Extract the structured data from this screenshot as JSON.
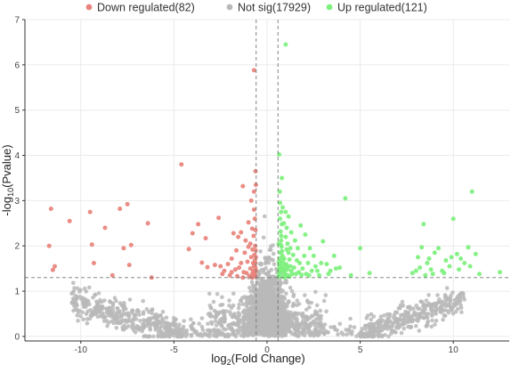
{
  "chart_data": {
    "type": "scatter",
    "title": "",
    "xlabel_main": "log",
    "xlabel_sub": "2",
    "xlabel_rest": "(Fold Change)",
    "ylabel_main": "-log",
    "ylabel_sub": "10",
    "ylabel_rest": "(Pvalue)",
    "xlim": [
      -13,
      13
    ],
    "ylim": [
      -0.1,
      7
    ],
    "x_ticks": [
      -10,
      -5,
      0,
      5,
      10
    ],
    "y_ticks": [
      0,
      1,
      2,
      3,
      4,
      5,
      6,
      7
    ],
    "grid": true,
    "legend_position": "top",
    "thresholds": {
      "x": [
        -0.585,
        0.585
      ],
      "y": 1.3
    },
    "colors": {
      "down": "#e8837b",
      "notsig": "#b8b8b8",
      "up": "#7df07d",
      "grid": "#ebebeb",
      "threshold": "#777777",
      "axis": "#333333"
    },
    "series": [
      {
        "name": "Down regulated(82)",
        "key": "down",
        "points": [
          [
            -11.6,
            2.82
          ],
          [
            -11.7,
            2.0
          ],
          [
            -11.4,
            1.55
          ],
          [
            -11.5,
            1.47
          ],
          [
            -10.6,
            2.55
          ],
          [
            -9.5,
            2.75
          ],
          [
            -9.4,
            2.03
          ],
          [
            -9.3,
            1.62
          ],
          [
            -8.7,
            2.4
          ],
          [
            -7.9,
            2.82
          ],
          [
            -7.5,
            2.92
          ],
          [
            -7.3,
            2.02
          ],
          [
            -7.7,
            1.95
          ],
          [
            -8.3,
            1.35
          ],
          [
            -7.4,
            1.58
          ],
          [
            -6.4,
            2.5
          ],
          [
            -6.2,
            1.3
          ],
          [
            -4.6,
            3.8
          ],
          [
            -4.2,
            1.93
          ],
          [
            -4.0,
            2.28
          ],
          [
            -3.7,
            2.48
          ],
          [
            -3.5,
            1.63
          ],
          [
            -3.3,
            2.17
          ],
          [
            -3.2,
            1.53
          ],
          [
            -2.6,
            2.62
          ],
          [
            -2.5,
            1.55
          ],
          [
            -2.4,
            1.38
          ],
          [
            -2.3,
            1.45
          ],
          [
            -2.1,
            1.6
          ],
          [
            -2.0,
            1.35
          ],
          [
            -1.9,
            1.42
          ],
          [
            -1.9,
            1.72
          ],
          [
            -1.8,
            2.28
          ],
          [
            -1.7,
            1.48
          ],
          [
            -1.65,
            1.9
          ],
          [
            -1.6,
            1.33
          ],
          [
            -1.55,
            2.2
          ],
          [
            -1.5,
            1.52
          ],
          [
            -1.4,
            1.62
          ],
          [
            -1.4,
            2.3
          ],
          [
            -1.3,
            3.32
          ],
          [
            -1.25,
            1.42
          ],
          [
            -1.2,
            1.85
          ],
          [
            -1.15,
            2.12
          ],
          [
            -1.1,
            1.4
          ],
          [
            -1.05,
            1.65
          ],
          [
            -1.0,
            1.98
          ],
          [
            -1.0,
            2.52
          ],
          [
            -0.95,
            1.33
          ],
          [
            -0.9,
            1.5
          ],
          [
            -0.9,
            2.05
          ],
          [
            -0.85,
            1.75
          ],
          [
            -0.85,
            3.0
          ],
          [
            -0.8,
            1.38
          ],
          [
            -0.8,
            2.38
          ],
          [
            -0.78,
            1.92
          ],
          [
            -0.75,
            1.45
          ],
          [
            -0.75,
            1.62
          ],
          [
            -0.72,
            2.22
          ],
          [
            -0.7,
            1.35
          ],
          [
            -0.7,
            1.55
          ],
          [
            -0.68,
            1.8
          ],
          [
            -0.66,
            2.6
          ],
          [
            -0.66,
            1.42
          ],
          [
            -0.65,
            1.68
          ],
          [
            -0.64,
            2.0
          ],
          [
            -0.63,
            1.32
          ],
          [
            -0.62,
            1.52
          ],
          [
            -0.62,
            2.35
          ],
          [
            -0.61,
            1.9
          ],
          [
            -0.6,
            1.45
          ],
          [
            -0.6,
            3.35
          ],
          [
            -0.6,
            1.75
          ],
          [
            -0.7,
            5.88
          ],
          [
            -0.62,
            3.65
          ],
          [
            -0.8,
            1.3
          ],
          [
            -1.3,
            1.3
          ],
          [
            -2.8,
            1.58
          ],
          [
            -0.7,
            2.8
          ],
          [
            -0.7,
            3.2
          ],
          [
            -0.63,
            1.62
          ],
          [
            -0.66,
            1.36
          ]
        ]
      },
      {
        "name": "Not sig(17929)",
        "key": "notsig"
      },
      {
        "name": "Up regulated(121)",
        "key": "up",
        "points": [
          [
            1.0,
            6.45
          ],
          [
            0.65,
            4.02
          ],
          [
            0.68,
            3.2
          ],
          [
            0.7,
            2.95
          ],
          [
            0.7,
            2.6
          ],
          [
            0.72,
            2.32
          ],
          [
            0.75,
            2.12
          ],
          [
            0.78,
            1.98
          ],
          [
            0.8,
            1.88
          ],
          [
            0.82,
            1.78
          ],
          [
            0.85,
            1.68
          ],
          [
            0.88,
            1.6
          ],
          [
            0.9,
            1.52
          ],
          [
            0.92,
            1.45
          ],
          [
            0.95,
            1.4
          ],
          [
            0.98,
            1.35
          ],
          [
            1.0,
            2.75
          ],
          [
            1.05,
            2.4
          ],
          [
            1.1,
            2.05
          ],
          [
            1.15,
            1.85
          ],
          [
            1.2,
            1.7
          ],
          [
            1.25,
            1.55
          ],
          [
            1.3,
            1.45
          ],
          [
            1.35,
            1.38
          ],
          [
            0.62,
            1.32
          ],
          [
            0.64,
            1.42
          ],
          [
            0.66,
            1.58
          ],
          [
            0.68,
            1.72
          ],
          [
            0.7,
            1.85
          ],
          [
            0.74,
            2.02
          ],
          [
            0.76,
            2.22
          ],
          [
            0.8,
            2.48
          ],
          [
            0.84,
            2.85
          ],
          [
            0.62,
            2.05
          ],
          [
            0.63,
            1.65
          ],
          [
            0.64,
            1.5
          ],
          [
            0.66,
            1.36
          ],
          [
            0.7,
            1.42
          ],
          [
            0.72,
            1.62
          ],
          [
            0.78,
            1.52
          ],
          [
            0.86,
            1.45
          ],
          [
            0.92,
            1.72
          ],
          [
            1.02,
            1.6
          ],
          [
            1.08,
            1.48
          ],
          [
            1.12,
            1.35
          ],
          [
            1.4,
            1.8
          ],
          [
            1.5,
            2.12
          ],
          [
            1.6,
            1.68
          ],
          [
            1.7,
            1.42
          ],
          [
            1.8,
            2.45
          ],
          [
            1.9,
            1.5
          ],
          [
            2.0,
            1.78
          ],
          [
            2.1,
            1.38
          ],
          [
            2.2,
            1.62
          ],
          [
            2.3,
            1.95
          ],
          [
            2.4,
            1.45
          ],
          [
            2.6,
            1.55
          ],
          [
            2.8,
            1.35
          ],
          [
            3.0,
            2.1
          ],
          [
            3.2,
            1.6
          ],
          [
            3.4,
            1.45
          ],
          [
            3.6,
            1.78
          ],
          [
            3.9,
            1.52
          ],
          [
            4.2,
            3.05
          ],
          [
            4.5,
            1.35
          ],
          [
            5.0,
            1.95
          ],
          [
            5.5,
            1.4
          ],
          [
            1.15,
            2.65
          ],
          [
            1.0,
            2.2
          ],
          [
            0.9,
            2.5
          ],
          [
            1.3,
            2.3
          ],
          [
            1.25,
            1.95
          ],
          [
            0.95,
            1.3
          ],
          [
            1.05,
            1.92
          ],
          [
            1.2,
            1.32
          ],
          [
            1.45,
            1.52
          ],
          [
            1.55,
            1.38
          ],
          [
            1.65,
            1.95
          ],
          [
            1.75,
            1.62
          ],
          [
            1.85,
            1.36
          ],
          [
            2.05,
            2.25
          ],
          [
            2.25,
            1.35
          ],
          [
            2.5,
            1.78
          ],
          [
            2.7,
            1.45
          ],
          [
            2.9,
            1.62
          ],
          [
            3.3,
            1.38
          ],
          [
            3.7,
            1.5
          ],
          [
            0.75,
            2.75
          ],
          [
            0.8,
            3.5
          ],
          [
            8.4,
            2.48
          ],
          [
            8.3,
            1.97
          ],
          [
            8.1,
            1.75
          ],
          [
            8.0,
            1.45
          ],
          [
            8.2,
            1.52
          ],
          [
            8.5,
            1.35
          ],
          [
            8.6,
            1.62
          ],
          [
            8.8,
            1.48
          ],
          [
            9.0,
            1.85
          ],
          [
            9.2,
            1.95
          ],
          [
            9.4,
            1.45
          ],
          [
            9.6,
            1.68
          ],
          [
            9.8,
            1.55
          ],
          [
            10.0,
            2.6
          ],
          [
            10.2,
            1.82
          ],
          [
            10.4,
            1.72
          ],
          [
            10.6,
            1.62
          ],
          [
            10.8,
            1.97
          ],
          [
            11.0,
            3.2
          ],
          [
            11.2,
            1.82
          ],
          [
            11.4,
            1.38
          ],
          [
            12.5,
            1.42
          ],
          [
            7.8,
            1.4
          ],
          [
            8.7,
            1.72
          ],
          [
            9.5,
            1.4
          ],
          [
            10.3,
            1.48
          ],
          [
            10.9,
            1.55
          ],
          [
            9.9,
            1.75
          ],
          [
            8.9,
            1.38
          ],
          [
            1.1,
            1.55
          ],
          [
            0.86,
            1.32
          ],
          [
            0.7,
            1.48
          ]
        ]
      }
    ]
  }
}
